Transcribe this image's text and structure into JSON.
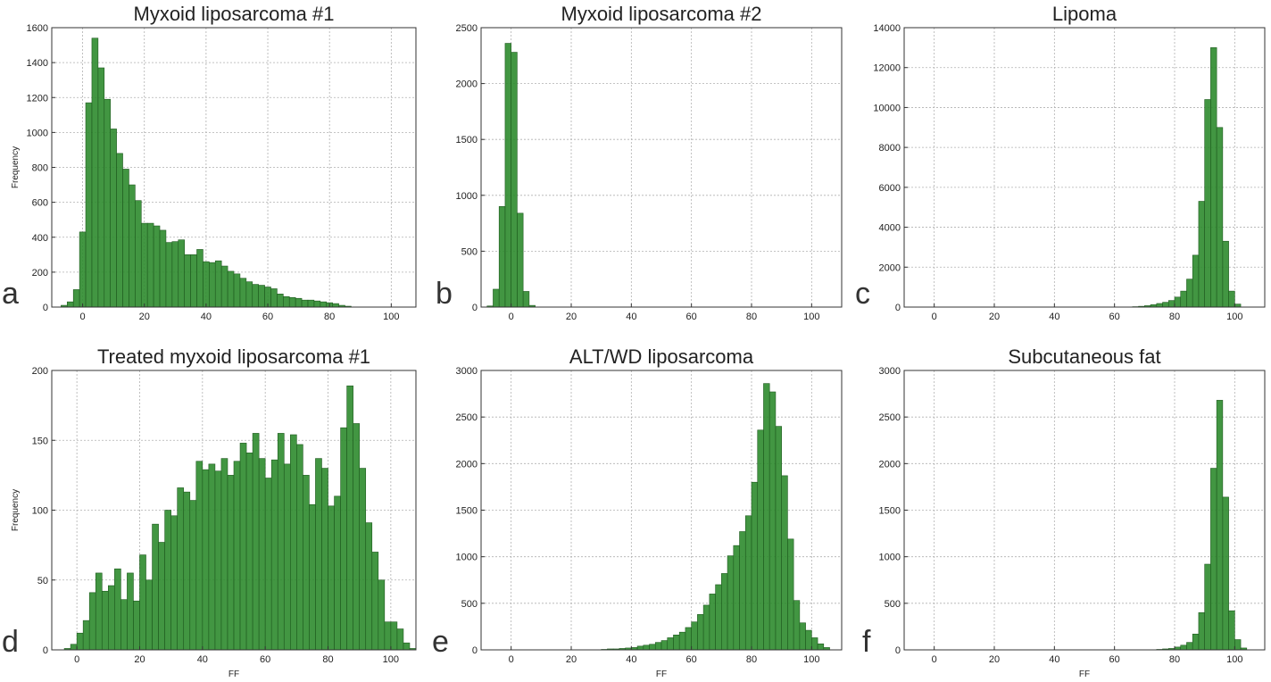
{
  "chart_data": [
    {
      "type": "bar",
      "panel": "a",
      "title": "Myxoid liposarcoma #1",
      "xlabel": "",
      "ylabel": "Frequency",
      "xlim": [
        -10,
        108
      ],
      "ylim": [
        0,
        1600
      ],
      "xticks": [
        0,
        20,
        40,
        60,
        80,
        100
      ],
      "yticks": [
        0,
        200,
        400,
        600,
        800,
        1000,
        1200,
        1400,
        1600
      ],
      "bin_start": -7,
      "bin_width": 2,
      "values": [
        10,
        30,
        100,
        430,
        1170,
        1540,
        1370,
        1190,
        1020,
        880,
        790,
        700,
        610,
        480,
        480,
        465,
        440,
        370,
        375,
        385,
        300,
        300,
        330,
        260,
        255,
        265,
        235,
        205,
        190,
        165,
        145,
        130,
        125,
        115,
        105,
        75,
        60,
        55,
        50,
        40,
        40,
        35,
        30,
        25,
        20,
        10,
        5
      ],
      "grid": true,
      "color": "#2e8b2e"
    },
    {
      "type": "bar",
      "panel": "b",
      "title": "Myxoid liposarcoma #2",
      "xlabel": "",
      "ylabel": "",
      "xlim": [
        -10,
        110
      ],
      "ylim": [
        0,
        2500
      ],
      "xticks": [
        0,
        20,
        40,
        60,
        80,
        100
      ],
      "yticks": [
        0,
        500,
        1000,
        1500,
        2000,
        2500
      ],
      "bin_start": -8,
      "bin_width": 2,
      "values": [
        10,
        160,
        900,
        2360,
        2280,
        840,
        140,
        15
      ],
      "grid": true,
      "color": "#2e8b2e"
    },
    {
      "type": "bar",
      "panel": "c",
      "title": "Lipoma",
      "xlabel": "",
      "ylabel": "",
      "xlim": [
        -10,
        110
      ],
      "ylim": [
        0,
        14000
      ],
      "xticks": [
        0,
        20,
        40,
        60,
        80,
        100
      ],
      "yticks": [
        0,
        2000,
        4000,
        6000,
        8000,
        10000,
        12000,
        14000
      ],
      "bin_start": 66,
      "bin_width": 2,
      "values": [
        20,
        40,
        70,
        120,
        180,
        240,
        330,
        500,
        800,
        1400,
        2600,
        5300,
        10400,
        13000,
        9000,
        3300,
        800,
        150
      ],
      "grid": true,
      "color": "#2e8b2e"
    },
    {
      "type": "bar",
      "panel": "d",
      "title": "Treated myxoid liposarcoma #1",
      "xlabel": "FF",
      "ylabel": "Frequency",
      "xlim": [
        -8,
        108
      ],
      "ylim": [
        0,
        200
      ],
      "xticks": [
        0,
        20,
        40,
        60,
        80,
        100
      ],
      "yticks": [
        0,
        50,
        100,
        150,
        200
      ],
      "bin_start": -4,
      "bin_width": 2,
      "values": [
        1,
        4,
        12,
        21,
        41,
        55,
        42,
        46,
        58,
        36,
        55,
        35,
        68,
        50,
        90,
        77,
        100,
        96,
        116,
        113,
        107,
        135,
        129,
        133,
        128,
        137,
        125,
        135,
        148,
        141,
        155,
        137,
        123,
        136,
        155,
        133,
        154,
        147,
        125,
        104,
        137,
        130,
        103,
        110,
        159,
        189,
        162,
        130,
        91,
        70,
        50,
        20,
        20,
        15,
        5,
        1
      ],
      "grid": true,
      "color": "#2e8b2e"
    },
    {
      "type": "bar",
      "panel": "e",
      "title": "ALT/WD liposarcoma",
      "xlabel": "FF",
      "ylabel": "",
      "xlim": [
        -10,
        110
      ],
      "ylim": [
        0,
        3000
      ],
      "xticks": [
        0,
        20,
        40,
        60,
        80,
        100
      ],
      "yticks": [
        0,
        500,
        1000,
        1500,
        2000,
        2500,
        3000
      ],
      "bin_start": 30,
      "bin_width": 2,
      "values": [
        5,
        10,
        10,
        15,
        20,
        25,
        40,
        50,
        60,
        80,
        100,
        130,
        160,
        190,
        240,
        300,
        380,
        480,
        600,
        700,
        820,
        1010,
        1120,
        1270,
        1440,
        1800,
        2360,
        2860,
        2770,
        2400,
        1870,
        1190,
        530,
        290,
        210,
        130,
        65,
        25
      ],
      "grid": true,
      "color": "#2e8b2e"
    },
    {
      "type": "bar",
      "panel": "f",
      "title": "Subcutaneous fat",
      "xlabel": "FF",
      "ylabel": "",
      "xlim": [
        -10,
        110
      ],
      "ylim": [
        0,
        3000
      ],
      "xticks": [
        0,
        20,
        40,
        60,
        80,
        100
      ],
      "yticks": [
        0,
        500,
        1000,
        1500,
        2000,
        2500,
        3000
      ],
      "bin_start": 74,
      "bin_width": 2,
      "values": [
        5,
        10,
        15,
        30,
        50,
        80,
        170,
        400,
        920,
        1950,
        2680,
        1640,
        420,
        110,
        20
      ],
      "grid": true,
      "color": "#2e8b2e"
    }
  ]
}
